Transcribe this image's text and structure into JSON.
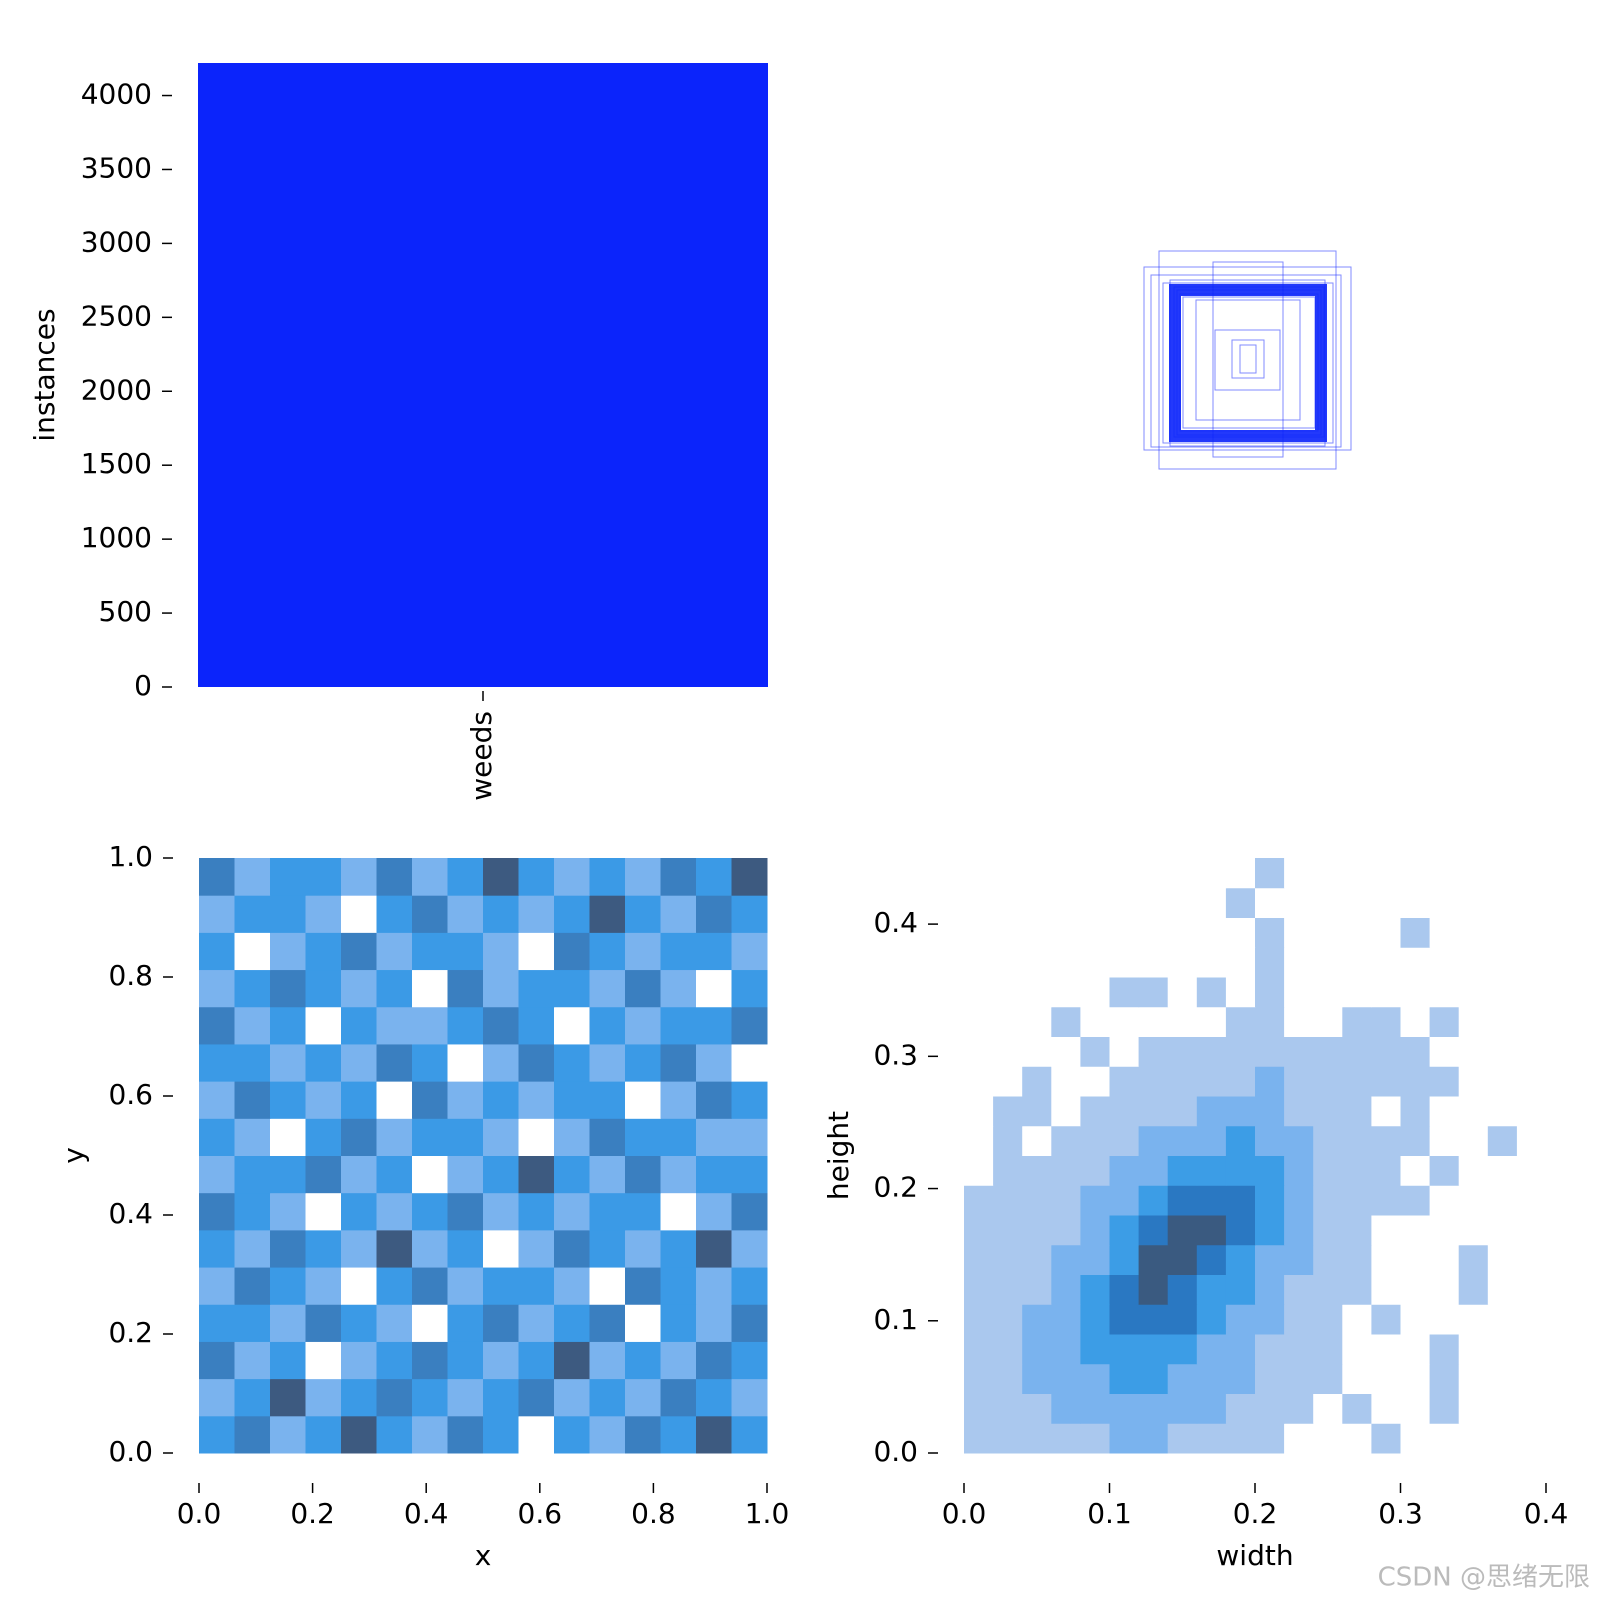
{
  "chart_data": [
    {
      "type": "bar",
      "ylabel": "instances",
      "categories": [
        "weeds"
      ],
      "values": [
        4220
      ],
      "color": "#0b24fb",
      "ylim": [
        0,
        4220
      ],
      "yticks": [
        0,
        500,
        1000,
        1500,
        2000,
        2500,
        3000,
        3500,
        4000
      ]
    },
    {
      "type": "heatmap",
      "xlabel": "x",
      "ylabel": "y",
      "xlim": [
        0,
        1
      ],
      "ylim": [
        0,
        1
      ],
      "xticks": [
        {
          "value": 0,
          "label": "0.0"
        },
        0.2,
        0.4,
        0.6,
        0.8,
        {
          "value": 1,
          "label": "1.0"
        }
      ],
      "yticks": [
        {
          "value": 0,
          "label": "0.0"
        },
        0.2,
        0.4,
        0.6,
        0.8,
        {
          "value": 1,
          "label": "1.0"
        }
      ],
      "colors": [
        "#ffffff",
        "#7ab3ee",
        "#3b9ae6",
        "#3a7fc0",
        "#3d5a80"
      ],
      "z": [
        [
          2,
          3,
          1,
          2,
          4,
          2,
          1,
          3,
          2,
          0,
          2,
          1,
          3,
          2,
          4,
          2
        ],
        [
          1,
          2,
          4,
          1,
          2,
          3,
          2,
          1,
          2,
          3,
          1,
          2,
          1,
          3,
          2,
          1
        ],
        [
          3,
          1,
          2,
          0,
          1,
          2,
          3,
          2,
          1,
          2,
          4,
          1,
          2,
          1,
          3,
          2
        ],
        [
          2,
          2,
          1,
          3,
          2,
          1,
          0,
          2,
          3,
          1,
          2,
          3,
          0,
          2,
          1,
          3
        ],
        [
          1,
          3,
          2,
          1,
          0,
          2,
          3,
          1,
          2,
          2,
          1,
          0,
          3,
          2,
          1,
          2
        ],
        [
          2,
          1,
          3,
          2,
          1,
          4,
          1,
          2,
          0,
          1,
          3,
          2,
          1,
          2,
          4,
          1
        ],
        [
          3,
          2,
          1,
          0,
          2,
          1,
          2,
          3,
          1,
          2,
          1,
          2,
          2,
          0,
          1,
          3
        ],
        [
          1,
          2,
          2,
          3,
          1,
          2,
          0,
          1,
          2,
          4,
          2,
          1,
          3,
          1,
          2,
          2
        ],
        [
          2,
          1,
          0,
          2,
          3,
          1,
          2,
          2,
          1,
          0,
          1,
          3,
          2,
          2,
          1,
          1
        ],
        [
          1,
          3,
          2,
          1,
          2,
          0,
          3,
          1,
          2,
          1,
          2,
          2,
          0,
          1,
          3,
          2
        ],
        [
          2,
          2,
          1,
          2,
          1,
          3,
          2,
          0,
          1,
          3,
          2,
          1,
          2,
          3,
          1,
          0
        ],
        [
          3,
          1,
          2,
          0,
          2,
          1,
          1,
          2,
          3,
          2,
          0,
          2,
          1,
          2,
          2,
          3
        ],
        [
          1,
          2,
          3,
          2,
          1,
          2,
          0,
          3,
          1,
          2,
          2,
          1,
          3,
          1,
          0,
          2
        ],
        [
          2,
          0,
          1,
          2,
          3,
          1,
          2,
          2,
          1,
          0,
          3,
          2,
          1,
          2,
          2,
          1
        ],
        [
          1,
          2,
          2,
          1,
          0,
          2,
          3,
          1,
          2,
          1,
          2,
          4,
          2,
          1,
          3,
          2
        ],
        [
          3,
          1,
          2,
          2,
          1,
          3,
          1,
          2,
          4,
          2,
          1,
          2,
          1,
          3,
          2,
          4
        ]
      ]
    },
    {
      "type": "heatmap",
      "xlabel": "width",
      "ylabel": "height",
      "xlim": [
        0,
        0.4
      ],
      "ylim": [
        0,
        0.45
      ],
      "xticks": [
        {
          "value": 0,
          "label": "0.0"
        },
        0.1,
        0.2,
        0.3,
        0.4
      ],
      "yticks": [
        {
          "value": 0,
          "label": "0.0"
        },
        0.1,
        0.2,
        0.3,
        0.4
      ],
      "colors": [
        "#ffffff",
        "#aac8ee",
        "#7ab3ee",
        "#3c9de6",
        "#2a78c2",
        "#3a5a80"
      ],
      "z": [
        [
          1,
          1,
          1,
          1,
          1,
          2,
          2,
          1,
          1,
          1,
          1,
          0,
          0,
          0,
          1,
          0,
          0,
          0,
          0,
          0
        ],
        [
          1,
          1,
          1,
          2,
          2,
          2,
          2,
          2,
          2,
          1,
          1,
          1,
          0,
          1,
          0,
          0,
          1,
          0,
          0,
          0
        ],
        [
          1,
          1,
          2,
          2,
          2,
          3,
          3,
          2,
          2,
          2,
          1,
          1,
          1,
          0,
          0,
          0,
          1,
          0,
          0,
          0
        ],
        [
          1,
          1,
          2,
          2,
          3,
          3,
          3,
          3,
          2,
          2,
          1,
          1,
          1,
          0,
          0,
          0,
          1,
          0,
          0,
          0
        ],
        [
          1,
          1,
          2,
          2,
          3,
          4,
          4,
          4,
          3,
          2,
          2,
          1,
          1,
          0,
          1,
          0,
          0,
          0,
          0,
          0
        ],
        [
          1,
          1,
          1,
          2,
          3,
          4,
          5,
          4,
          3,
          3,
          2,
          1,
          1,
          1,
          0,
          0,
          0,
          1,
          0,
          0
        ],
        [
          1,
          1,
          1,
          2,
          2,
          3,
          5,
          5,
          4,
          3,
          2,
          2,
          1,
          1,
          0,
          0,
          0,
          1,
          0,
          0
        ],
        [
          1,
          1,
          1,
          1,
          2,
          3,
          4,
          5,
          5,
          4,
          3,
          2,
          1,
          1,
          0,
          0,
          0,
          0,
          0,
          0
        ],
        [
          1,
          1,
          1,
          1,
          2,
          2,
          3,
          4,
          4,
          4,
          3,
          2,
          1,
          1,
          1,
          1,
          0,
          0,
          0,
          0
        ],
        [
          0,
          1,
          1,
          1,
          1,
          2,
          2,
          3,
          3,
          3,
          3,
          2,
          1,
          1,
          1,
          0,
          1,
          0,
          0,
          0
        ],
        [
          0,
          1,
          0,
          1,
          1,
          1,
          2,
          2,
          2,
          3,
          2,
          2,
          1,
          1,
          1,
          1,
          0,
          0,
          1,
          0
        ],
        [
          0,
          1,
          1,
          0,
          1,
          1,
          1,
          1,
          2,
          2,
          2,
          1,
          1,
          1,
          0,
          1,
          0,
          0,
          0,
          0
        ],
        [
          0,
          0,
          1,
          0,
          0,
          1,
          1,
          1,
          1,
          1,
          2,
          1,
          1,
          1,
          1,
          1,
          1,
          0,
          0,
          0
        ],
        [
          0,
          0,
          0,
          0,
          1,
          0,
          1,
          1,
          1,
          1,
          1,
          1,
          1,
          1,
          1,
          1,
          0,
          0,
          0,
          0
        ],
        [
          0,
          0,
          0,
          1,
          0,
          0,
          0,
          0,
          0,
          1,
          1,
          0,
          0,
          1,
          1,
          0,
          1,
          0,
          0,
          0
        ],
        [
          0,
          0,
          0,
          0,
          0,
          1,
          1,
          0,
          1,
          0,
          1,
          0,
          0,
          0,
          0,
          0,
          0,
          0,
          0,
          0
        ],
        [
          0,
          0,
          0,
          0,
          0,
          0,
          0,
          0,
          0,
          0,
          1,
          0,
          0,
          0,
          0,
          0,
          0,
          0,
          0,
          0
        ],
        [
          0,
          0,
          0,
          0,
          0,
          0,
          0,
          0,
          0,
          0,
          1,
          0,
          0,
          0,
          0,
          1,
          0,
          0,
          0,
          0
        ],
        [
          0,
          0,
          0,
          0,
          0,
          0,
          0,
          0,
          0,
          1,
          0,
          0,
          0,
          0,
          0,
          0,
          0,
          0,
          0,
          0
        ],
        [
          0,
          0,
          0,
          0,
          0,
          0,
          0,
          0,
          0,
          0,
          1,
          0,
          0,
          0,
          0,
          0,
          0,
          0,
          0,
          0
        ]
      ]
    }
  ],
  "watermark": "CSDN @思绪无限"
}
